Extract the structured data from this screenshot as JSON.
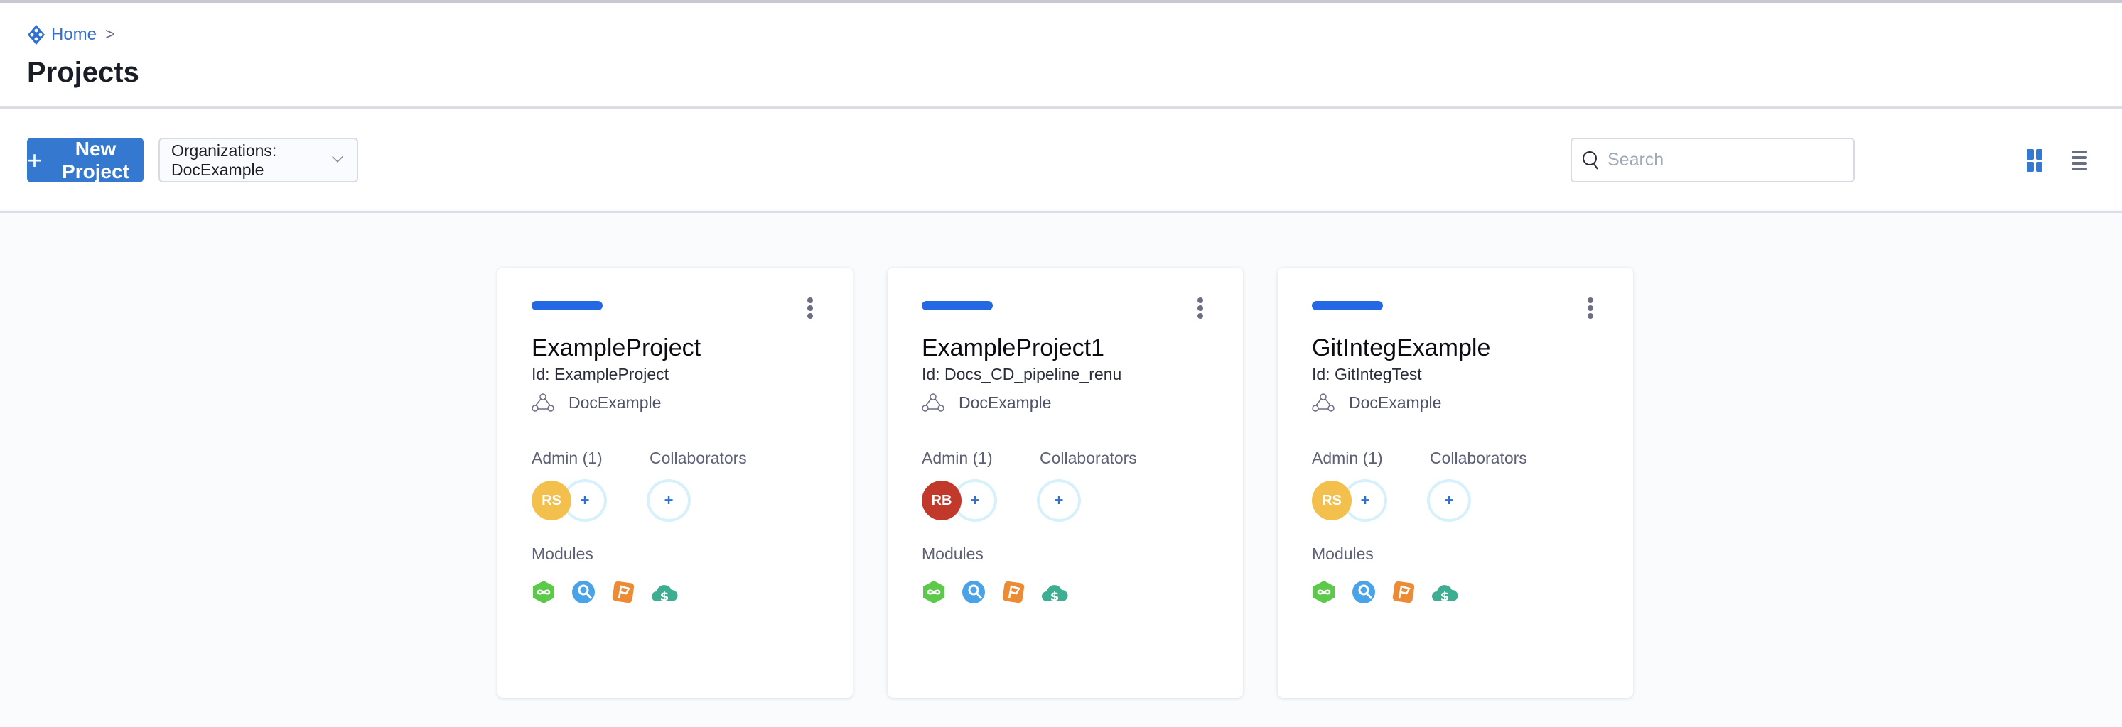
{
  "breadcrumb": {
    "home": "Home",
    "separator": ">"
  },
  "page_title": "Projects",
  "toolbar": {
    "new_project_label": "New Project",
    "new_project_icon": "plus-icon",
    "org_filter": "Organizations: DocExample",
    "search_placeholder": "Search",
    "view_grid": "grid-view-icon",
    "view_list": "list-view-icon"
  },
  "colors": {
    "accent": "#3478d0",
    "card_bar": "#2468e4"
  },
  "labels": {
    "admin": "Admin (1)",
    "collaborators": "Collaborators",
    "modules": "Modules",
    "add": "+"
  },
  "projects": [
    {
      "name": "ExampleProject",
      "id": "Id: ExampleProject",
      "org": "DocExample",
      "admin_initials": "RS",
      "admin_color": "#f3c04d"
    },
    {
      "name": "ExampleProject1",
      "id": "Id: Docs_CD_pipeline_renu",
      "org": "DocExample",
      "admin_initials": "RB",
      "admin_color": "#c0392b"
    },
    {
      "name": "GitIntegExample",
      "id": "Id: GitIntegTest",
      "org": "DocExample",
      "admin_initials": "RS",
      "admin_color": "#f3c04d"
    }
  ],
  "modules": [
    "cd-module-icon",
    "ci-module-icon",
    "feature-flags-module-icon",
    "cloud-cost-module-icon"
  ]
}
